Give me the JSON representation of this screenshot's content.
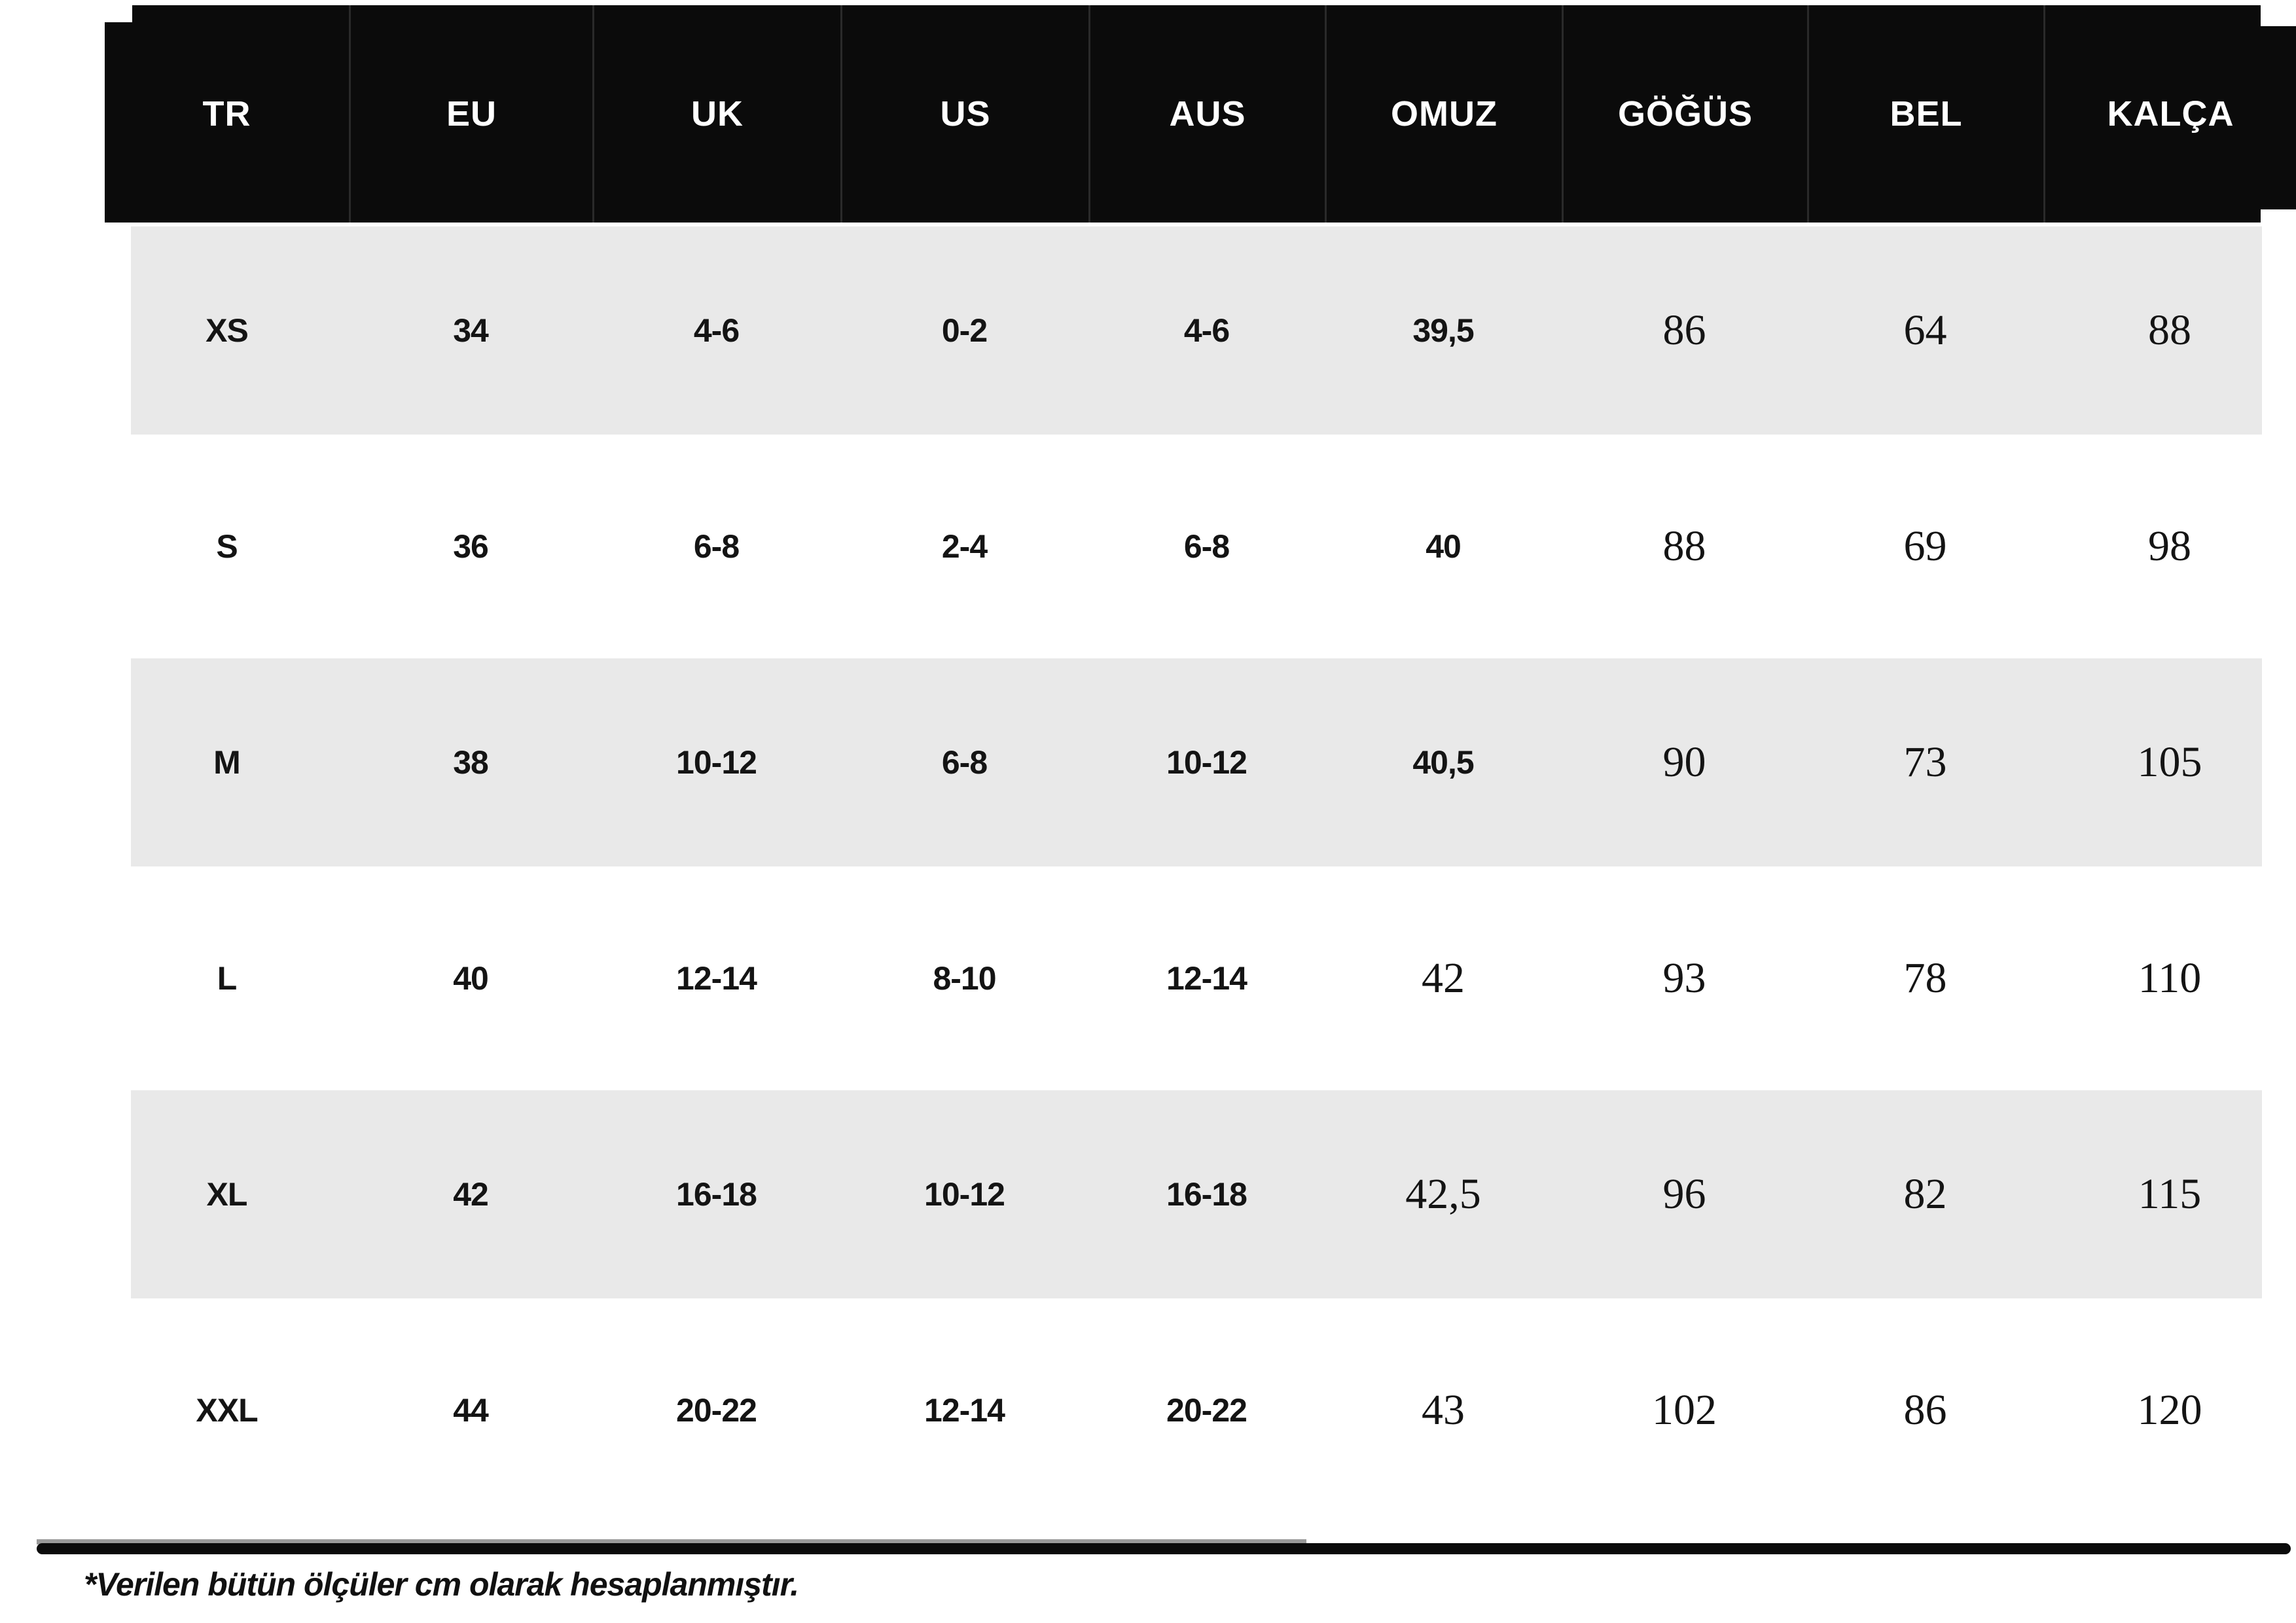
{
  "header": {
    "columns": [
      "TR",
      "EU",
      "UK",
      "US",
      "AUS",
      "OMUZ",
      "GÖĞÜS",
      "BEL",
      "KALÇA"
    ]
  },
  "table": {
    "rows": [
      {
        "cells": [
          "XS",
          "34",
          "4-6",
          "0-2",
          "4-6",
          "39,5",
          "86",
          "64",
          "88"
        ]
      },
      {
        "cells": [
          "S",
          "36",
          "6-8",
          "2-4",
          "6-8",
          "40",
          "88",
          "69",
          "98"
        ]
      },
      {
        "cells": [
          "M",
          "38",
          "10-12",
          "6-8",
          "10-12",
          "40,5",
          "90",
          "73",
          "105"
        ]
      },
      {
        "cells": [
          "L",
          "40",
          "12-14",
          "8-10",
          "12-14",
          "42",
          "93",
          "78",
          "110"
        ]
      },
      {
        "cells": [
          "XL",
          "42",
          "16-18",
          "10-12",
          "16-18",
          "42,5",
          "96",
          "82",
          "115"
        ]
      },
      {
        "cells": [
          "XXL",
          "44",
          "20-22",
          "12-14",
          "20-22",
          "43",
          "102",
          "86",
          "120"
        ]
      }
    ]
  },
  "footer": {
    "note": "*Verilen bütün ölçüler cm olarak hesaplanmıştır."
  },
  "colors": {
    "header_bg": "#0b0b0b",
    "header_text": "#ffffff",
    "row_alt_bg": "#e9e9e9",
    "text": "#141414",
    "rule": "#0b0b0b"
  }
}
